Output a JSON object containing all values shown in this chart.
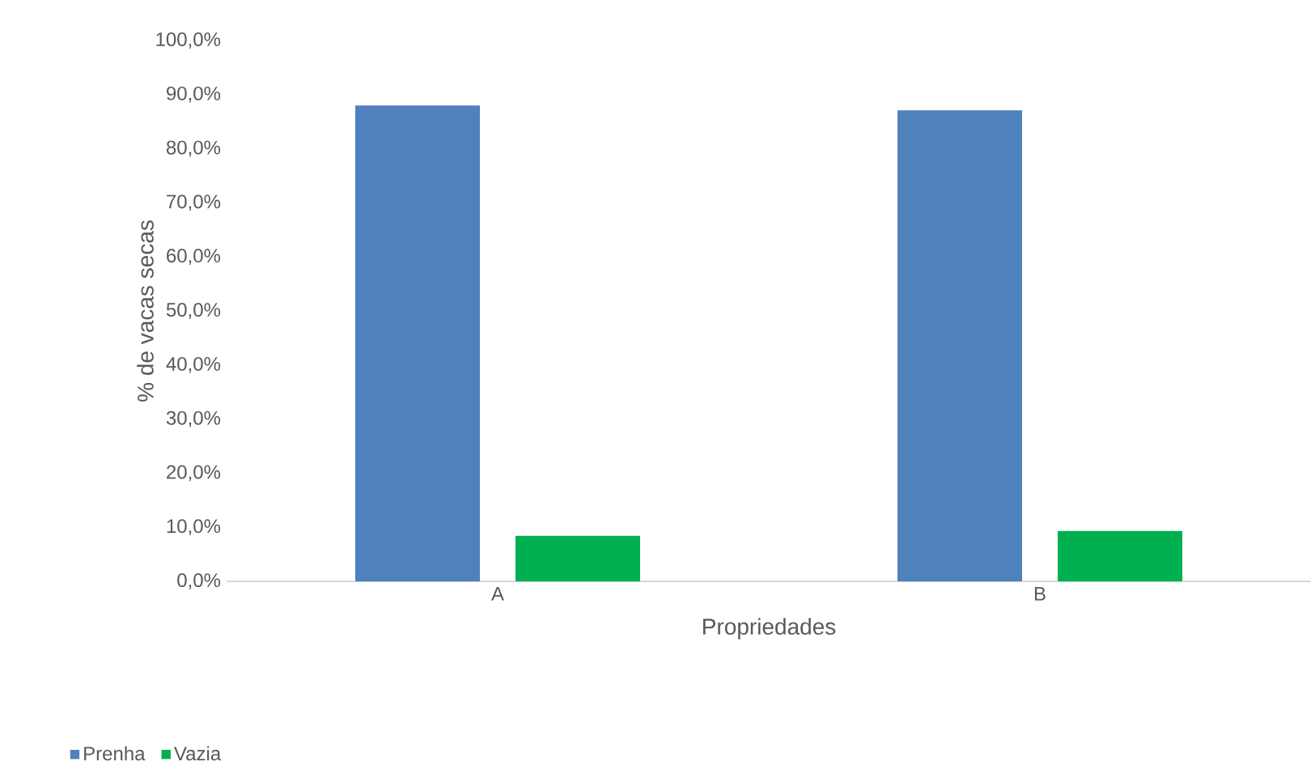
{
  "chart_data": {
    "type": "bar",
    "xlabel": "Propriedades",
    "ylabel": "% de vacas secas",
    "categories": [
      "A",
      "B"
    ],
    "series": [
      {
        "name": "Prenha",
        "color": "#4f81bd",
        "values": [
          88.0,
          87.1
        ]
      },
      {
        "name": "Vazia",
        "color": "#00b050",
        "values": [
          8.4,
          9.3
        ]
      }
    ],
    "ylim": [
      0,
      100
    ],
    "yticks": [
      {
        "value": 0,
        "label": "0,0%"
      },
      {
        "value": 10,
        "label": "10,0%"
      },
      {
        "value": 20,
        "label": "20,0%"
      },
      {
        "value": 30,
        "label": "30,0%"
      },
      {
        "value": 40,
        "label": "40,0%"
      },
      {
        "value": 50,
        "label": "50,0%"
      },
      {
        "value": 60,
        "label": "60,0%"
      },
      {
        "value": 70,
        "label": "70,0%"
      },
      {
        "value": 80,
        "label": "80,0%"
      },
      {
        "value": 90,
        "label": "90,0%"
      },
      {
        "value": 100,
        "label": "100,0%"
      }
    ],
    "grid": false,
    "legend": "bottom left"
  }
}
